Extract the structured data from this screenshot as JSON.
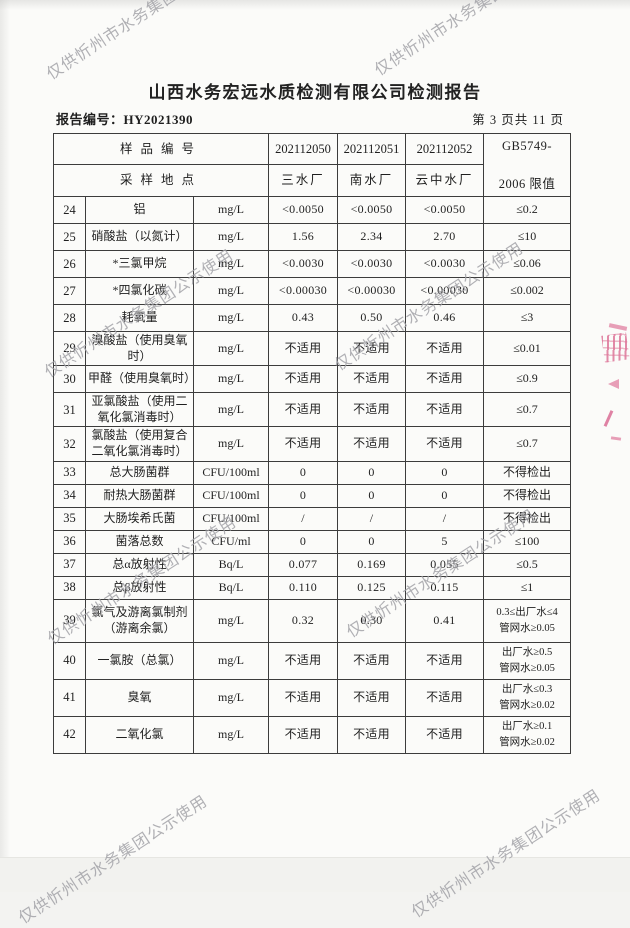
{
  "page": {
    "title": "山西水务宏远水质检测有限公司检测报告",
    "report_no": "报告编号：HY2021390",
    "page_info": "第 3 页共 11 页"
  },
  "watermark": {
    "text": "仅供忻州市水务集团公示使用",
    "color": "#a3a3a8"
  },
  "table": {
    "header": {
      "sample_id_label": "样品编号",
      "location_label": "采样地点",
      "sample_ids": [
        "202112050",
        "202112051",
        "202112052"
      ],
      "locations": [
        "三水厂",
        "南水厂",
        "云中水厂"
      ],
      "limit_title_line1": "GB5749-",
      "limit_title_line2": "2006 限值"
    },
    "rows": [
      {
        "no": "24",
        "name": "铝",
        "name2": "",
        "unit": "mg/L",
        "values": [
          "<0.0050",
          "<0.0050",
          "<0.0050"
        ],
        "limit": "≤0.2",
        "limit2": ""
      },
      {
        "no": "25",
        "name": "硝酸盐（以氮计）",
        "name2": "",
        "unit": "mg/L",
        "values": [
          "1.56",
          "2.34",
          "2.70"
        ],
        "limit": "≤10",
        "limit2": ""
      },
      {
        "no": "26",
        "name": "*三氯甲烷",
        "name2": "",
        "unit": "mg/L",
        "values": [
          "<0.0030",
          "<0.0030",
          "<0.0030"
        ],
        "limit": "≤0.06",
        "limit2": ""
      },
      {
        "no": "27",
        "name": "*四氯化碳",
        "name2": "",
        "unit": "mg/L",
        "values": [
          "<0.00030",
          "<0.00030",
          "<0.00030"
        ],
        "limit": "≤0.002",
        "limit2": ""
      },
      {
        "no": "28",
        "name": "耗氧量",
        "name2": "",
        "unit": "mg/L",
        "values": [
          "0.43",
          "0.50",
          "0.46"
        ],
        "limit": "≤3",
        "limit2": ""
      },
      {
        "no": "29",
        "name": "溴酸盐（使用臭氧",
        "name2": "时）",
        "unit": "mg/L",
        "values": [
          "不适用",
          "不适用",
          "不适用"
        ],
        "limit": "≤0.01",
        "limit2": ""
      },
      {
        "no": "30",
        "name": "甲醛（使用臭氧时）",
        "name2": "",
        "unit": "mg/L",
        "values": [
          "不适用",
          "不适用",
          "不适用"
        ],
        "limit": "≤0.9",
        "limit2": ""
      },
      {
        "no": "31",
        "name": "亚氯酸盐（使用二",
        "name2": "氧化氯消毒时）",
        "unit": "mg/L",
        "values": [
          "不适用",
          "不适用",
          "不适用"
        ],
        "limit": "≤0.7",
        "limit2": ""
      },
      {
        "no": "32",
        "name": "氯酸盐（使用复合",
        "name2": "二氧化氯消毒时）",
        "unit": "mg/L",
        "values": [
          "不适用",
          "不适用",
          "不适用"
        ],
        "limit": "≤0.7",
        "limit2": ""
      },
      {
        "no": "33",
        "name": "总大肠菌群",
        "name2": "",
        "unit": "CFU/100ml",
        "values": [
          "0",
          "0",
          "0"
        ],
        "limit": "不得检出",
        "limit2": ""
      },
      {
        "no": "34",
        "name": "耐热大肠菌群",
        "name2": "",
        "unit": "CFU/100ml",
        "values": [
          "0",
          "0",
          "0"
        ],
        "limit": "不得检出",
        "limit2": ""
      },
      {
        "no": "35",
        "name": "大肠埃希氏菌",
        "name2": "",
        "unit": "CFU/100ml",
        "values": [
          "/",
          "/",
          "/"
        ],
        "limit": "不得检出",
        "limit2": ""
      },
      {
        "no": "36",
        "name": "菌落总数",
        "name2": "",
        "unit": "CFU/ml",
        "values": [
          "0",
          "0",
          "5"
        ],
        "limit": "≤100",
        "limit2": ""
      },
      {
        "no": "37",
        "name": "总α放射性",
        "name2": "",
        "unit": "Bq/L",
        "values": [
          "0.077",
          "0.169",
          "0.055"
        ],
        "limit": "≤0.5",
        "limit2": ""
      },
      {
        "no": "38",
        "name": "总β放射性",
        "name2": "",
        "unit": "Bq/L",
        "values": [
          "0.110",
          "0.125",
          "0.115"
        ],
        "limit": "≤1",
        "limit2": ""
      },
      {
        "no": "39",
        "name": "氯气及游离氯制剂",
        "name2": "（游离余氯）",
        "unit": "mg/L",
        "values": [
          "0.32",
          "0.30",
          "0.41"
        ],
        "limit": "0.3≤出厂水≤4",
        "limit2": "管网水≥0.05"
      },
      {
        "no": "40",
        "name": "一氯胺（总氯）",
        "name2": "",
        "unit": "mg/L",
        "values": [
          "不适用",
          "不适用",
          "不适用"
        ],
        "limit": "出厂水≥0.5",
        "limit2": "管网水≥0.05"
      },
      {
        "no": "41",
        "name": "臭氧",
        "name2": "",
        "unit": "mg/L",
        "values": [
          "不适用",
          "不适用",
          "不适用"
        ],
        "limit": "出厂水≤0.3",
        "limit2": "管网水≥0.02"
      },
      {
        "no": "42",
        "name": "二氧化氯",
        "name2": "",
        "unit": "mg/L",
        "values": [
          "不适用",
          "不适用",
          "不适用"
        ],
        "limit": "出厂水≥0.1",
        "limit2": "管网水≥0.02"
      }
    ]
  }
}
